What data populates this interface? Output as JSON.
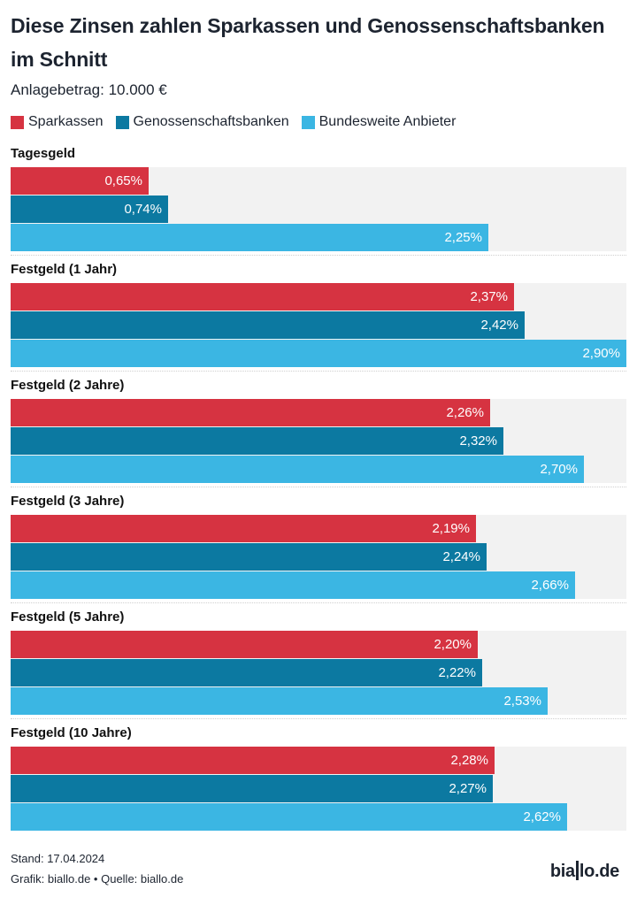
{
  "header": {
    "title": "Diese Zinsen zahlen Sparkassen und Genossenschaftsbanken im Schnitt",
    "subtitle": "Anlagebetrag: 10.000 €"
  },
  "footer": {
    "stand": "Stand: 17.04.2024",
    "source": "Grafik: biallo.de • Quelle: biallo.de",
    "logo_left": "bia",
    "logo_right": "lo.de"
  },
  "chart_data": {
    "type": "bar",
    "orientation": "horizontal-grouped",
    "title": "Diese Zinsen zahlen Sparkassen und Genossenschaftsbanken im Schnitt",
    "subtitle": "Anlagebetrag: 10.000 €",
    "xlabel": "",
    "ylabel": "",
    "unit": "%",
    "xlim": [
      0,
      2.9
    ],
    "grid": false,
    "legend_position": "top-left",
    "categories": [
      "Tagesgeld",
      "Festgeld (1 Jahr)",
      "Festgeld (2 Jahre)",
      "Festgeld (3 Jahre)",
      "Festgeld (5 Jahre)",
      "Festgeld (10 Jahre)"
    ],
    "series": [
      {
        "name": "Sparkassen",
        "color": "#d63341",
        "values": [
          0.65,
          2.37,
          2.26,
          2.19,
          2.2,
          2.28
        ],
        "labels": [
          "0,65%",
          "2,37%",
          "2,26%",
          "2,19%",
          "2,20%",
          "2,28%"
        ]
      },
      {
        "name": "Genossenschaftsbanken",
        "color": "#0c79a1",
        "values": [
          0.74,
          2.42,
          2.32,
          2.24,
          2.22,
          2.27
        ],
        "labels": [
          "0,74%",
          "2,42%",
          "2,32%",
          "2,24%",
          "2,22%",
          "2,27%"
        ]
      },
      {
        "name": "Bundesweite Anbieter",
        "color": "#3bb6e3",
        "values": [
          2.25,
          2.9,
          2.7,
          2.66,
          2.53,
          2.62
        ],
        "labels": [
          "2,25%",
          "2,90%",
          "2,70%",
          "2,66%",
          "2,53%",
          "2,62%"
        ]
      }
    ]
  }
}
